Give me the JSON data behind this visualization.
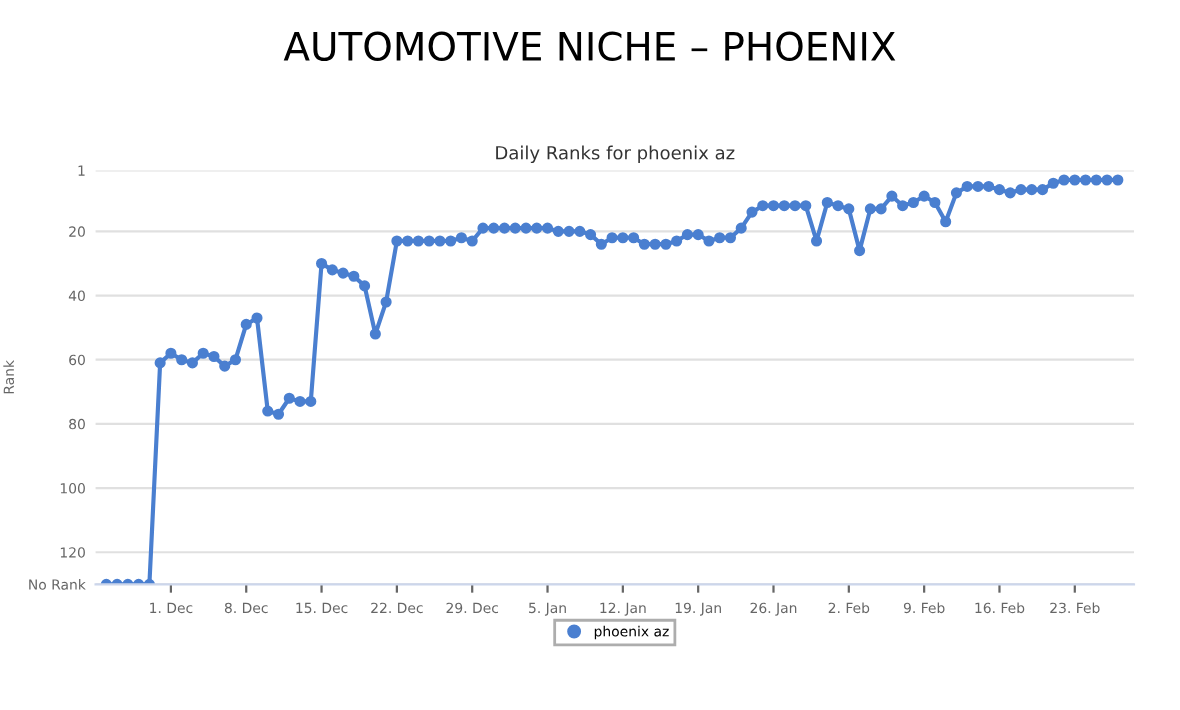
{
  "chart_data": {
    "type": "line",
    "title": "AUTOMOTIVE NICHE – PHOENIX",
    "subtitle": "Daily Ranks for phoenix az",
    "ylabel": "Rank",
    "categories": [
      null,
      null,
      null,
      null,
      null,
      null,
      "1. Dec",
      null,
      null,
      null,
      null,
      null,
      null,
      "8. Dec",
      null,
      null,
      null,
      null,
      null,
      null,
      "15. Dec",
      null,
      null,
      null,
      null,
      null,
      null,
      "22. Dec",
      null,
      null,
      null,
      null,
      null,
      null,
      "29. Dec",
      null,
      null,
      null,
      null,
      null,
      null,
      "5. Jan",
      null,
      null,
      null,
      null,
      null,
      null,
      "12. Jan",
      null,
      null,
      null,
      null,
      null,
      null,
      "19. Jan",
      null,
      null,
      null,
      null,
      null,
      null,
      "26. Jan",
      null,
      null,
      null,
      null,
      null,
      null,
      "2. Feb",
      null,
      null,
      null,
      null,
      null,
      null,
      "9. Feb",
      null,
      null,
      null,
      null,
      null,
      null,
      "16. Feb",
      null,
      null,
      null,
      null,
      null,
      null,
      "23. Feb",
      null,
      null,
      null,
      null
    ],
    "series": [
      {
        "name": "phoenix az",
        "color": "#4a7fd0",
        "values": [
          130,
          130,
          130,
          130,
          130,
          61,
          58,
          60,
          61,
          58,
          59,
          62,
          60,
          49,
          47,
          76,
          77,
          72,
          73,
          73,
          30,
          32,
          33,
          34,
          37,
          52,
          42,
          23,
          23,
          23,
          23,
          23,
          23,
          22,
          23,
          19,
          19,
          19,
          19,
          19,
          19,
          19,
          20,
          20,
          20,
          21,
          24,
          22,
          22,
          22,
          24,
          24,
          24,
          23,
          21,
          21,
          23,
          22,
          22,
          19,
          14,
          12,
          12,
          12,
          12,
          12,
          23,
          11,
          12,
          13,
          26,
          13,
          13,
          9,
          12,
          11,
          9,
          11,
          17,
          8,
          6,
          6,
          6,
          7,
          8,
          7,
          7,
          7,
          5,
          4,
          4,
          4,
          4,
          4,
          4
        ]
      }
    ],
    "ylim": [
      130,
      1
    ],
    "yticks": [
      1,
      20,
      40,
      60,
      80,
      100,
      120,
      {
        "value": 130,
        "label": "No Rank"
      }
    ],
    "grid": "y",
    "legend": "bottom",
    "marker": "circle",
    "line_style": "solid"
  }
}
